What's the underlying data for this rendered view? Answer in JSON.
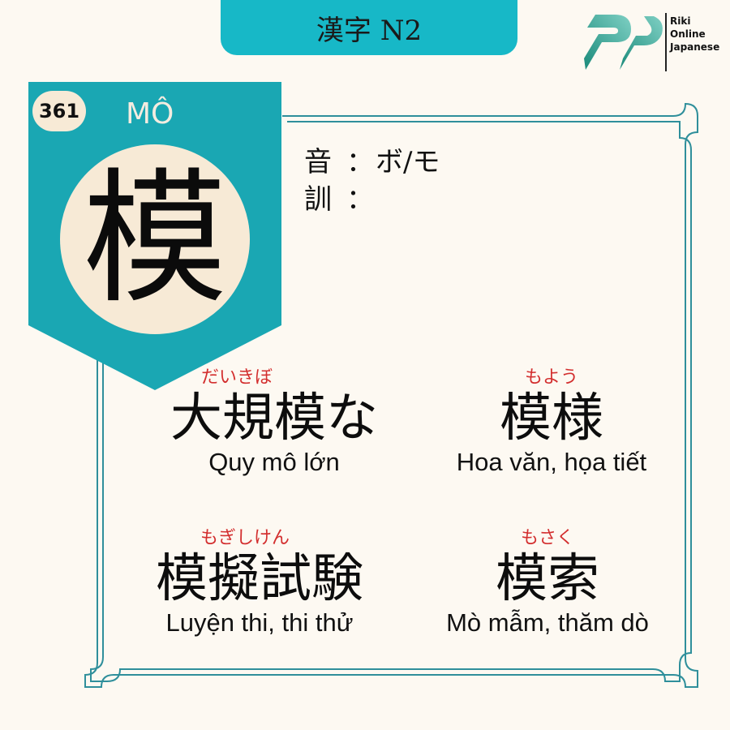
{
  "header": {
    "title": "漢字 N2"
  },
  "logo": {
    "line1": "Riki",
    "line2": "Online",
    "line3": "Japanese"
  },
  "card": {
    "number": "361",
    "reading": "MÔ",
    "kanji": "模"
  },
  "readings": {
    "on_label": "音",
    "on_sep": "：",
    "on_value": "ボ/モ",
    "kun_label": "訓",
    "kun_sep": "：",
    "kun_value": ""
  },
  "vocab": [
    {
      "furigana": "だいきぼ",
      "word": "大規模な",
      "meaning": "Quy mô lớn"
    },
    {
      "furigana": "もよう",
      "word": "模様",
      "meaning": "Hoa văn, họa tiết"
    },
    {
      "furigana": "もぎしけん",
      "word": "模擬試験",
      "meaning": "Luyện thi, thi thử"
    },
    {
      "furigana": "もさく",
      "word": "模索",
      "meaning": "Mò mẫm, thăm dò"
    }
  ],
  "colors": {
    "teal": "#17b8c7",
    "banner": "#1aa7b3",
    "cream": "#f7ead6",
    "furigana": "#d32f2f",
    "frame": "#2f8f9b"
  }
}
